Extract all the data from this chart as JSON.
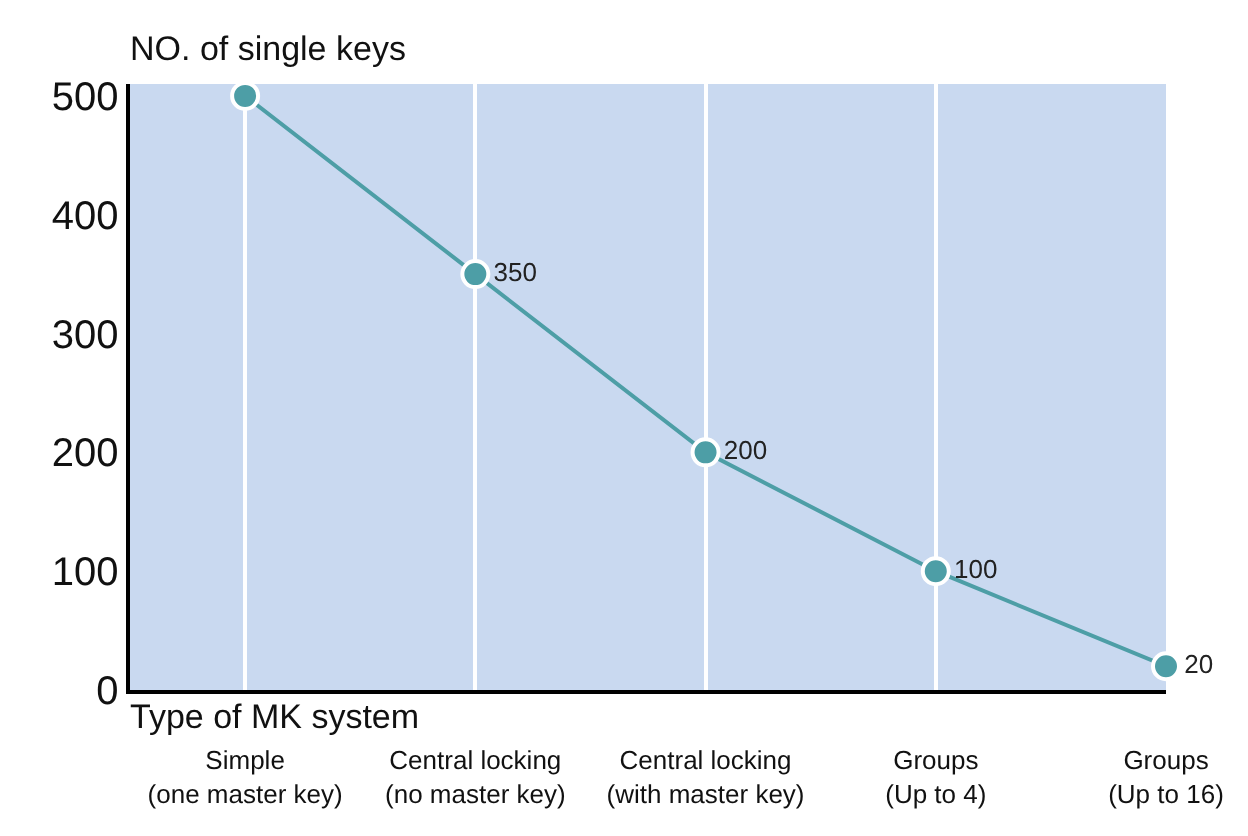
{
  "chart_data": {
    "type": "line",
    "xlabel": "Type of MK system",
    "ylabel": "NO. of single keys",
    "categories": [
      "Simple\n(one master key)",
      "Central locking\n(no master key)",
      "Central locking\n(with master key)",
      "Groups\n(Up to 4)",
      "Groups\n(Up to 16)"
    ],
    "series": [
      {
        "color": "#4d9ea6",
        "values": [
          500,
          350,
          200,
          100,
          20
        ],
        "value_labels": [
          null,
          "350",
          "200",
          "100",
          "20"
        ]
      }
    ],
    "ylim": [
      0,
      510
    ],
    "yticks": [
      0,
      100,
      200,
      300,
      400,
      500
    ],
    "grid": "x",
    "marker": "circle",
    "line_style": "solid",
    "legend": false
  }
}
